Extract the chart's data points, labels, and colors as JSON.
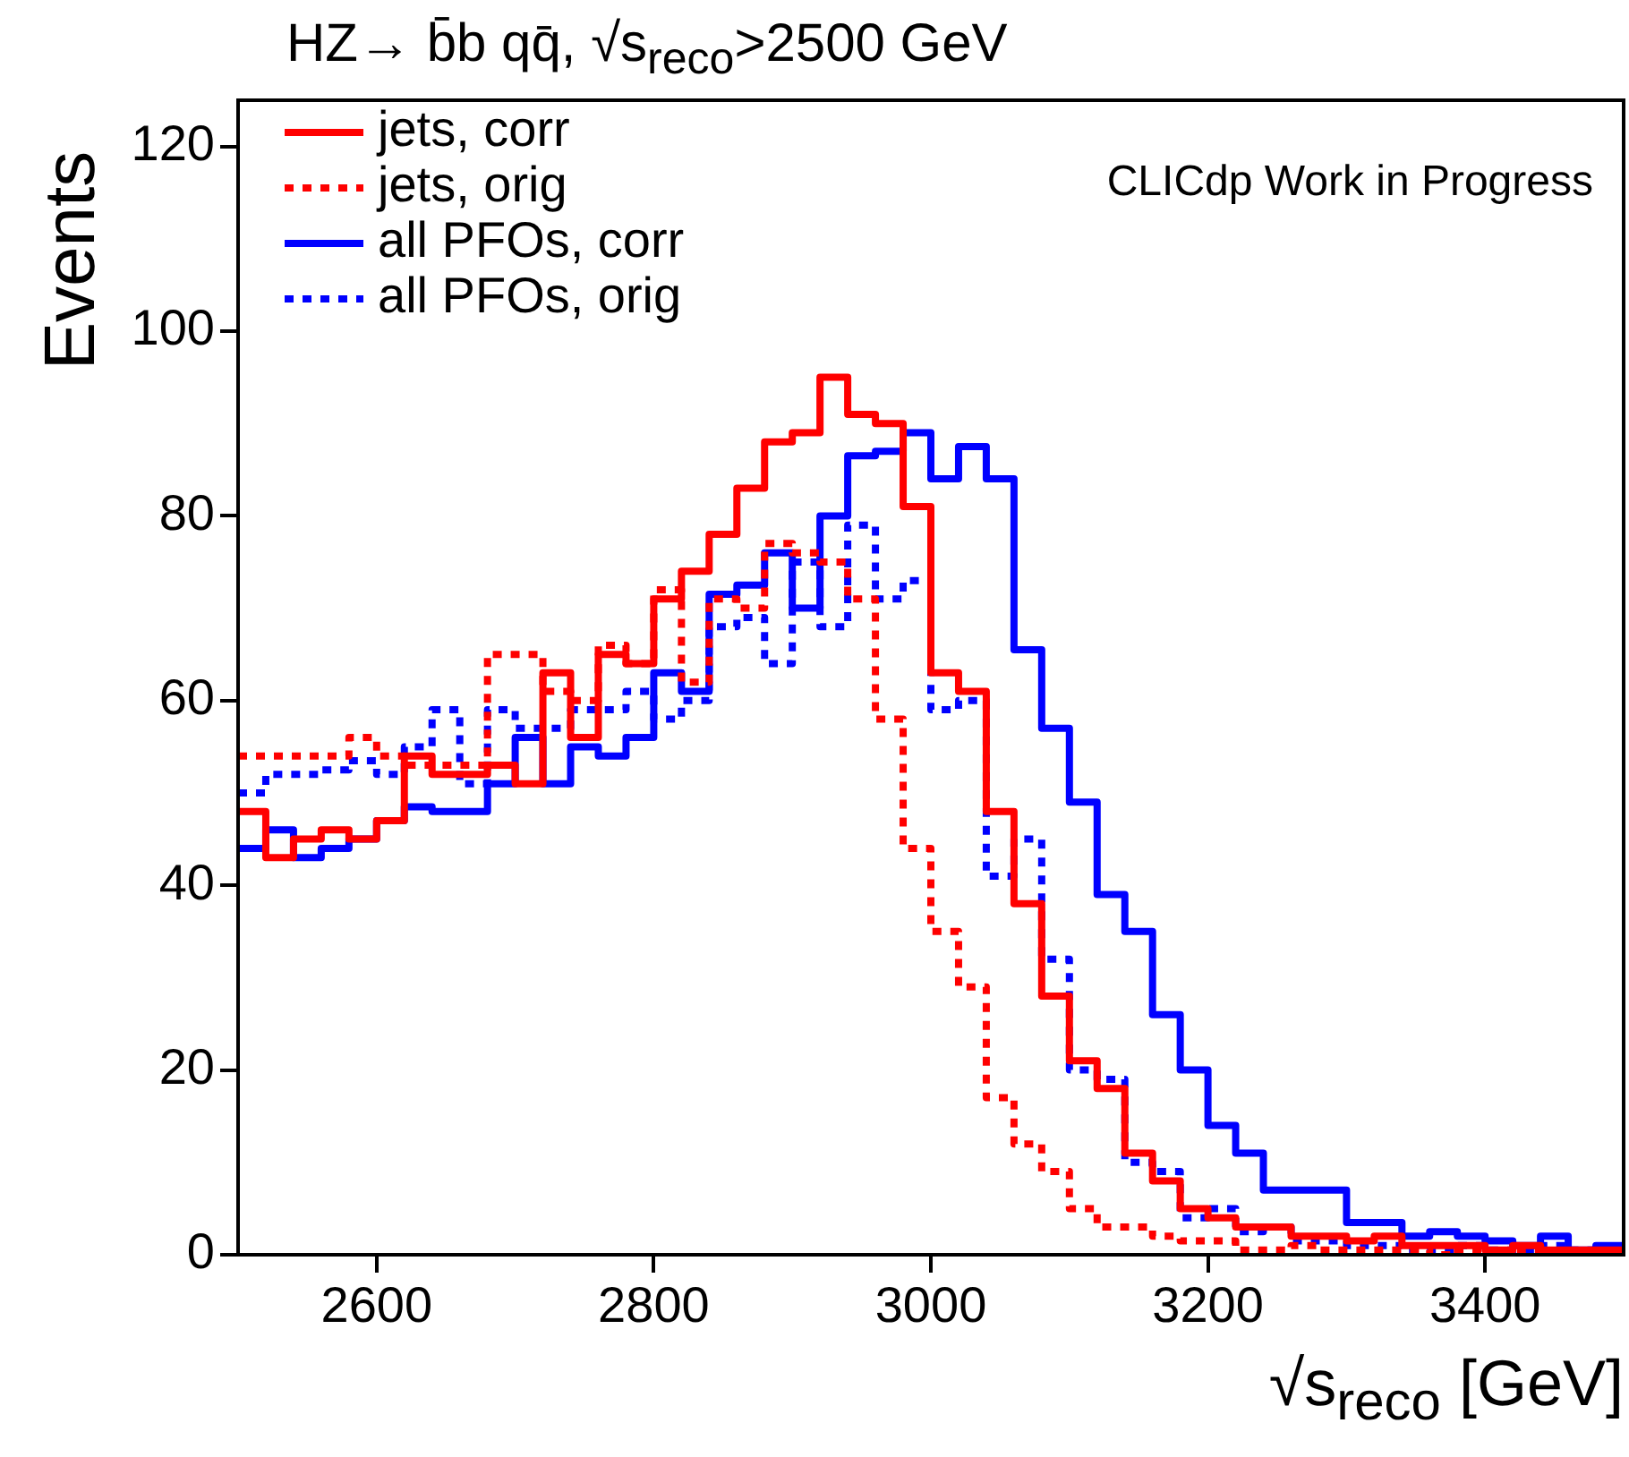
{
  "chart_data": {
    "type": "histogram",
    "title": "HZ→ b̄b qq̄, √s$_{reco}$>2500 GeV",
    "xlabel": "√s$_{reco}$ [GeV]",
    "ylabel": "Events",
    "annotations": [
      "CLICdp Work in Progress"
    ],
    "bins": [
      2500,
      2520,
      2540,
      2560,
      2580,
      2600,
      2620,
      2640,
      2660,
      2680,
      2700,
      2720,
      2740,
      2760,
      2780,
      2800,
      2820,
      2840,
      2860,
      2880,
      2900,
      2920,
      2940,
      2960,
      2980,
      3000,
      3020,
      3040,
      3060,
      3080,
      3100,
      3120,
      3140,
      3160,
      3180,
      3200,
      3220,
      3240,
      3260,
      3280,
      3300,
      3320,
      3340,
      3360,
      3380,
      3400,
      3420,
      3440,
      3460,
      3480,
      3500
    ],
    "series": [
      {
        "name": "jets, corr",
        "color": "#ff0000",
        "line_style": "solid",
        "values": [
          48,
          43,
          45,
          46,
          45,
          47,
          54,
          52,
          52,
          53,
          51,
          63,
          56,
          65,
          64,
          71,
          74,
          78,
          83,
          88,
          89,
          95,
          91,
          90,
          81,
          63,
          61,
          48,
          38,
          28,
          21,
          18,
          11,
          8,
          5,
          4,
          3,
          3,
          2,
          2,
          1.5,
          2,
          1,
          1,
          1,
          0.5,
          1,
          0.5,
          0.5,
          0.5
        ]
      },
      {
        "name": "jets, orig",
        "color": "#fe0000",
        "line_style": "dotted",
        "values": [
          54,
          54,
          54,
          54,
          56,
          54,
          53,
          53,
          53,
          65,
          65,
          61,
          60,
          66,
          64,
          72,
          62,
          71,
          70,
          77,
          76,
          75,
          71,
          58,
          44,
          35,
          29,
          17,
          12,
          9,
          5,
          3,
          3,
          2,
          1.5,
          1.5,
          0.5,
          0.5,
          1,
          0.5,
          0.5,
          0.5,
          0.5,
          0,
          0.5,
          0,
          0.5,
          0,
          0,
          0
        ]
      },
      {
        "name": "all PFOs, corr",
        "color": "#0000ff",
        "line_style": "solid",
        "values": [
          44,
          46,
          43,
          44,
          45,
          47,
          48.5,
          48,
          48,
          51,
          56,
          51,
          55,
          54,
          56,
          63,
          61,
          71.5,
          72.5,
          76,
          70,
          80,
          86.5,
          87,
          89,
          84,
          87.5,
          84,
          65.5,
          57,
          49,
          39,
          35,
          26,
          20,
          14,
          11,
          7,
          7,
          7,
          3.5,
          3.5,
          2,
          2.5,
          2,
          1.5,
          1,
          2,
          0.5,
          1
        ]
      },
      {
        "name": "all PFOs, orig",
        "color": "#0000fe",
        "line_style": "dotted",
        "values": [
          50,
          52,
          52,
          52.5,
          53.5,
          52,
          55,
          59,
          51,
          59,
          57,
          57,
          59,
          59,
          61,
          58,
          60,
          68,
          69,
          64,
          75,
          68,
          79,
          71,
          73,
          59,
          60,
          41,
          45,
          32,
          20,
          19,
          10,
          9,
          4,
          5,
          2.5,
          3,
          1.5,
          1.5,
          1,
          1,
          0.5,
          0.5,
          1,
          0.5,
          0.5,
          1,
          0.5,
          0.5
        ]
      }
    ],
    "xlim": [
      2500,
      3500
    ],
    "xticks": [
      2600,
      2800,
      3000,
      3200,
      3400
    ],
    "ylim": [
      0,
      125
    ],
    "yticks": [
      0,
      20,
      40,
      60,
      80,
      100,
      120
    ],
    "grid": false,
    "legend": "top left"
  }
}
